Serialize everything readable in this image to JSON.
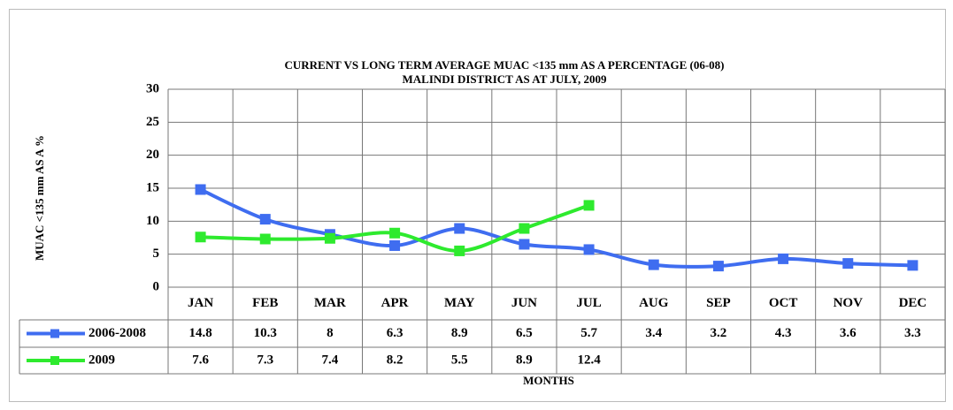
{
  "chart_data": {
    "type": "line",
    "title": "CURRENT VS LONG TERM AVERAGE  MUAC <135 mm AS A PERCENTAGE  (06-08)",
    "subtitle": "MALINDI DISTRICT AS AT JULY, 2009",
    "y_label": "MUAC <135 mm AS A  %",
    "x_label": "MONTHS",
    "categories": [
      "JAN",
      "FEB",
      "MAR",
      "APR",
      "MAY",
      "JUN",
      "JUL",
      "AUG",
      "SEP",
      "OCT",
      "NOV",
      "DEC"
    ],
    "series": [
      {
        "name": "2006-2008",
        "color": "#3f6df0",
        "values": [
          14.8,
          10.3,
          8,
          6.3,
          8.9,
          6.5,
          5.7,
          3.4,
          3.2,
          4.3,
          3.6,
          3.3
        ]
      },
      {
        "name": "2009",
        "color": "#2eea2e",
        "values": [
          7.6,
          7.3,
          7.4,
          8.2,
          5.5,
          8.9,
          12.4,
          null,
          null,
          null,
          null,
          null
        ]
      }
    ],
    "ylim": [
      0,
      30
    ],
    "yticks": [
      0,
      5,
      10,
      15,
      20,
      25,
      30
    ],
    "grid": true,
    "smooth": true
  }
}
